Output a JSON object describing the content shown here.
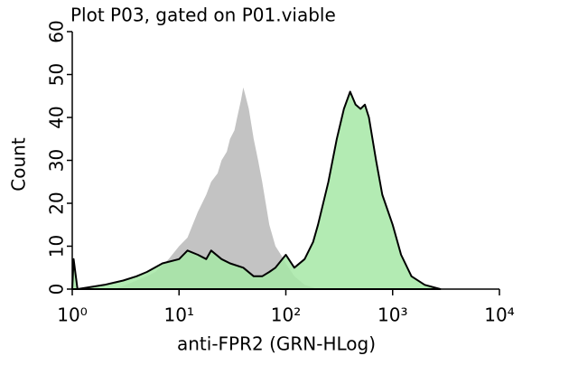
{
  "chart_data": {
    "type": "area",
    "title": "Plot P03, gated on P01.viable",
    "x_label": "anti-FPR2 (GRN-HLog)",
    "y_label": "Count",
    "xscale": "log",
    "xlim": [
      1,
      10000
    ],
    "xticks": [
      {
        "value": 1,
        "label": "10⁰"
      },
      {
        "value": 10,
        "label": "10¹"
      },
      {
        "value": 100,
        "label": "10²"
      },
      {
        "value": 1000,
        "label": "10³"
      },
      {
        "value": 10000,
        "label": "10⁴"
      }
    ],
    "ylim": [
      0,
      60
    ],
    "yticks": [
      0,
      10,
      20,
      30,
      40,
      50,
      60
    ],
    "series": [
      {
        "color": "#c3c3c3",
        "outline": null,
        "x": [
          2.5,
          4,
          5,
          6,
          8,
          10,
          12,
          15,
          18,
          20,
          23,
          25,
          28,
          30,
          33,
          35,
          38,
          40,
          42,
          45,
          50,
          55,
          60,
          70,
          80,
          90,
          100,
          120,
          150,
          200
        ],
        "values": [
          0,
          2,
          3,
          4,
          7,
          10,
          12,
          18,
          22,
          25,
          27,
          30,
          32,
          35,
          37,
          40,
          44,
          47,
          45,
          42,
          35,
          30,
          25,
          15,
          10,
          8,
          6,
          3,
          1,
          0
        ]
      },
      {
        "color": "#a6e8a6",
        "outline": "#000000",
        "x": [
          1,
          1.03,
          1.12,
          2,
          3,
          4,
          5,
          7,
          10,
          12,
          15,
          18,
          20,
          25,
          30,
          40,
          50,
          60,
          70,
          80,
          100,
          120,
          150,
          180,
          200,
          250,
          300,
          350,
          400,
          450,
          500,
          550,
          600,
          700,
          800,
          1000,
          1200,
          1500,
          2000,
          2800
        ],
        "values": [
          0,
          7,
          0,
          1,
          2,
          3,
          4,
          6,
          7,
          9,
          8,
          7,
          9,
          7,
          6,
          5,
          3,
          3,
          4,
          5,
          8,
          5,
          7,
          11,
          15,
          25,
          35,
          42,
          46,
          43,
          42,
          43,
          40,
          30,
          22,
          15,
          8,
          3,
          1,
          0
        ]
      }
    ]
  }
}
